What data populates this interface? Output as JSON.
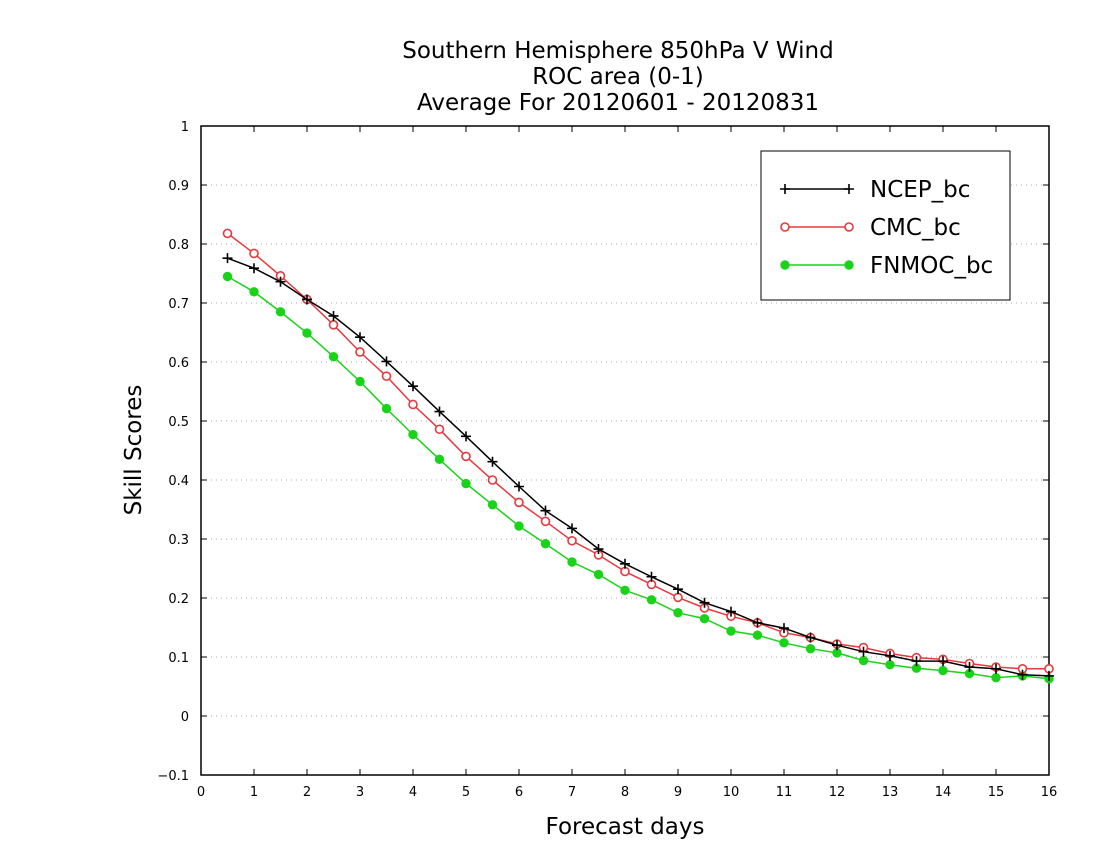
{
  "chart_data": {
    "type": "line",
    "title_lines": [
      "Southern Hemisphere 850hPa V Wind",
      "ROC area (0-1)",
      "Average For 20120601 - 20120831"
    ],
    "xlabel": "Forecast days",
    "ylabel": "Skill Scores",
    "xlim": [
      0,
      16
    ],
    "ylim": [
      -0.1,
      1
    ],
    "xticks": [
      0,
      1,
      2,
      3,
      4,
      5,
      6,
      7,
      8,
      9,
      10,
      11,
      12,
      13,
      14,
      15,
      16
    ],
    "xtick_labels": [
      "0",
      "1",
      "2",
      "3",
      "4",
      "5",
      "6",
      "7",
      "8",
      "9",
      "10",
      "11",
      "12",
      "13",
      "14",
      "15",
      "16"
    ],
    "yticks": [
      -0.1,
      0,
      0.1,
      0.2,
      0.3,
      0.4,
      0.5,
      0.6,
      0.7,
      0.8,
      0.9,
      1
    ],
    "ytick_labels": [
      "−0.1",
      "0",
      "0.1",
      "0.2",
      "0.3",
      "0.4",
      "0.5",
      "0.6",
      "0.7",
      "0.8",
      "0.9",
      "1"
    ],
    "grid": "horizontal dotted",
    "legend_position": "top-right",
    "x": [
      0.5,
      1,
      1.5,
      2,
      2.5,
      3,
      3.5,
      4,
      4.5,
      5,
      5.5,
      6,
      6.5,
      7,
      7.5,
      8,
      8.5,
      9,
      9.5,
      10,
      10.5,
      11,
      11.5,
      12,
      12.5,
      13,
      13.5,
      14,
      14.5,
      15,
      15.5,
      16
    ],
    "series": [
      {
        "name": "NCEP_bc",
        "color": "#000000",
        "marker": "plus",
        "values": [
          0.776,
          0.759,
          0.736,
          0.706,
          0.678,
          0.642,
          0.601,
          0.559,
          0.516,
          0.474,
          0.431,
          0.389,
          0.348,
          0.318,
          0.283,
          0.258,
          0.236,
          0.215,
          0.192,
          0.177,
          0.158,
          0.149,
          0.133,
          0.12,
          0.109,
          0.102,
          0.093,
          0.093,
          0.083,
          0.08,
          0.07,
          0.068
        ]
      },
      {
        "name": "CMC_bc",
        "color": "#e8383d",
        "marker": "open-circle",
        "values": [
          0.818,
          0.784,
          0.746,
          0.706,
          0.663,
          0.617,
          0.576,
          0.528,
          0.486,
          0.44,
          0.4,
          0.362,
          0.33,
          0.297,
          0.273,
          0.245,
          0.223,
          0.201,
          0.183,
          0.169,
          0.158,
          0.141,
          0.133,
          0.122,
          0.116,
          0.106,
          0.099,
          0.096,
          0.089,
          0.083,
          0.08,
          0.08
        ]
      },
      {
        "name": "FNMOC_bc",
        "color": "#19d319",
        "marker": "filled-circle",
        "values": [
          0.745,
          0.719,
          0.685,
          0.649,
          0.609,
          0.567,
          0.521,
          0.477,
          0.435,
          0.394,
          0.358,
          0.322,
          0.292,
          0.261,
          0.24,
          0.213,
          0.197,
          0.175,
          0.165,
          0.144,
          0.137,
          0.124,
          0.114,
          0.107,
          0.094,
          0.087,
          0.081,
          0.077,
          0.072,
          0.065,
          0.068,
          0.063
        ]
      }
    ]
  }
}
